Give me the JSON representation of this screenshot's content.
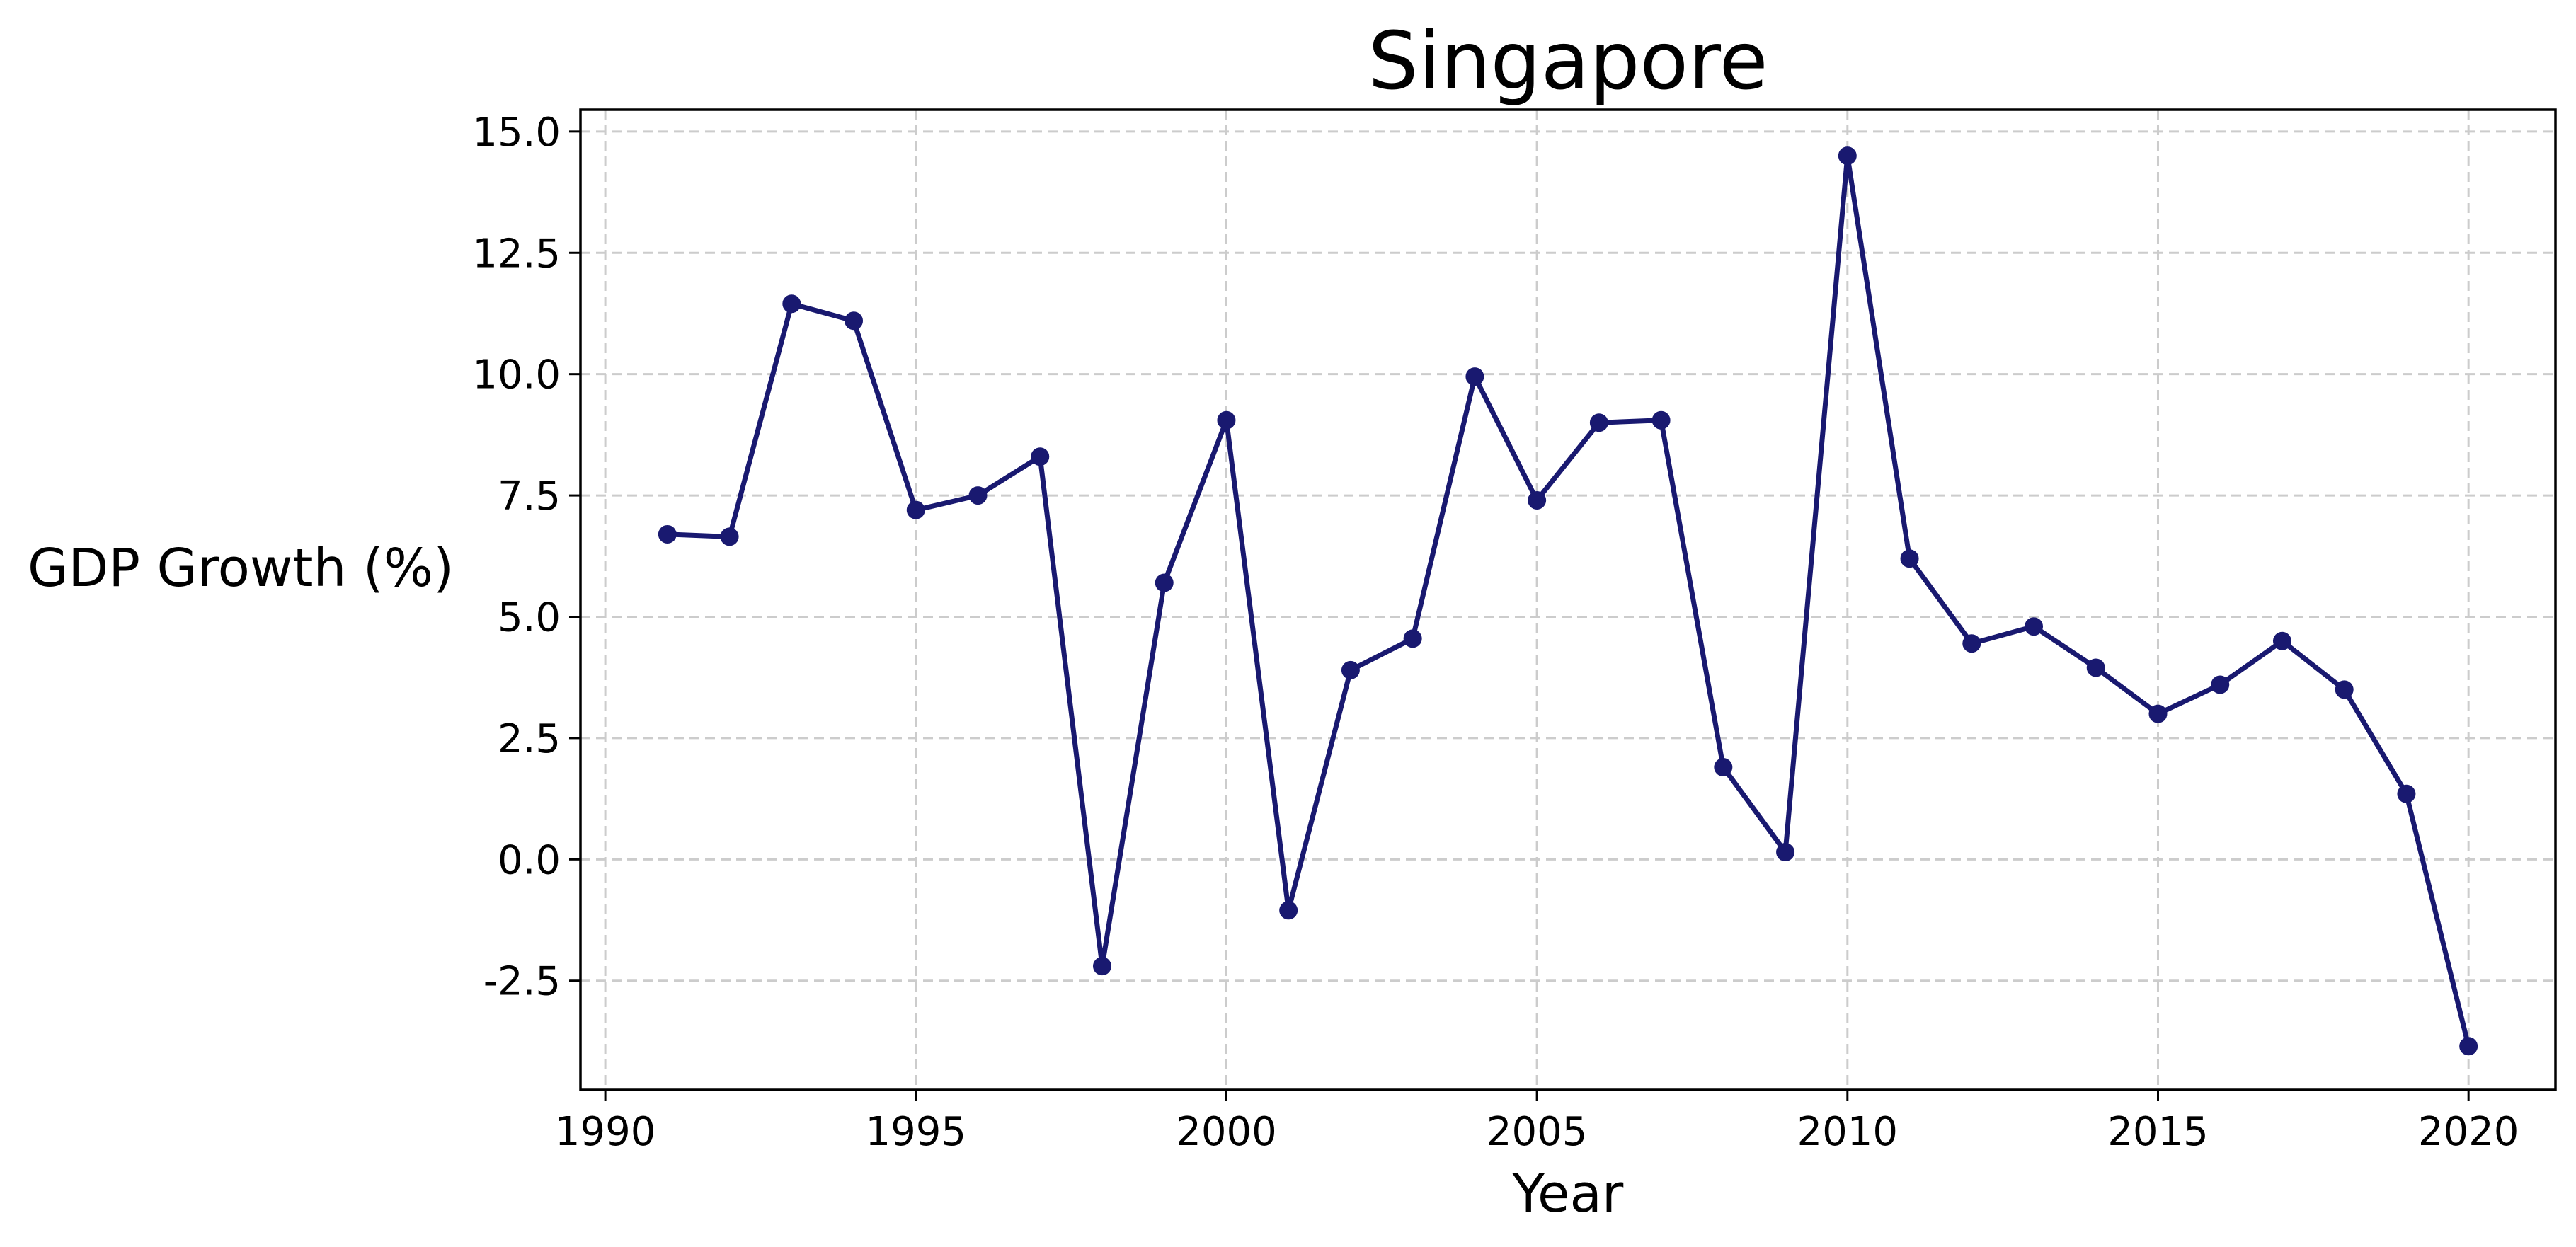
{
  "chart_data": {
    "type": "line",
    "title": "Singapore",
    "xlabel": "Year",
    "ylabel": "GDP Growth (%)",
    "xlim": [
      1989.6,
      2021.4
    ],
    "ylim": [
      -4.75,
      15.45
    ],
    "xticks": [
      1990,
      1995,
      2000,
      2005,
      2010,
      2015,
      2020
    ],
    "xtick_labels": [
      "1990",
      "1995",
      "2000",
      "2005",
      "2010",
      "2015",
      "2020"
    ],
    "yticks": [
      -2.5,
      0.0,
      2.5,
      5.0,
      7.5,
      10.0,
      12.5,
      15.0
    ],
    "ytick_labels": [
      "-2.5",
      "0.0",
      "2.5",
      "5.0",
      "7.5",
      "10.0",
      "12.5",
      "15.0"
    ],
    "grid": true,
    "colors": {
      "line": "#191970",
      "marker": "#191970",
      "grid": "#cccccc"
    },
    "x": [
      1991,
      1992,
      1993,
      1994,
      1995,
      1996,
      1997,
      1998,
      1999,
      2000,
      2001,
      2002,
      2003,
      2004,
      2005,
      2006,
      2007,
      2008,
      2009,
      2010,
      2011,
      2012,
      2013,
      2014,
      2015,
      2016,
      2017,
      2018,
      2019,
      2020
    ],
    "series": [
      {
        "values": [
          6.7,
          6.65,
          11.45,
          11.1,
          7.2,
          7.5,
          8.3,
          -2.2,
          5.7,
          9.05,
          -1.05,
          3.9,
          4.55,
          9.95,
          7.4,
          9.0,
          9.05,
          1.9,
          0.15,
          14.5,
          6.2,
          4.45,
          4.8,
          3.95,
          3.0,
          3.6,
          4.5,
          3.5,
          1.35,
          -3.85
        ]
      }
    ]
  }
}
